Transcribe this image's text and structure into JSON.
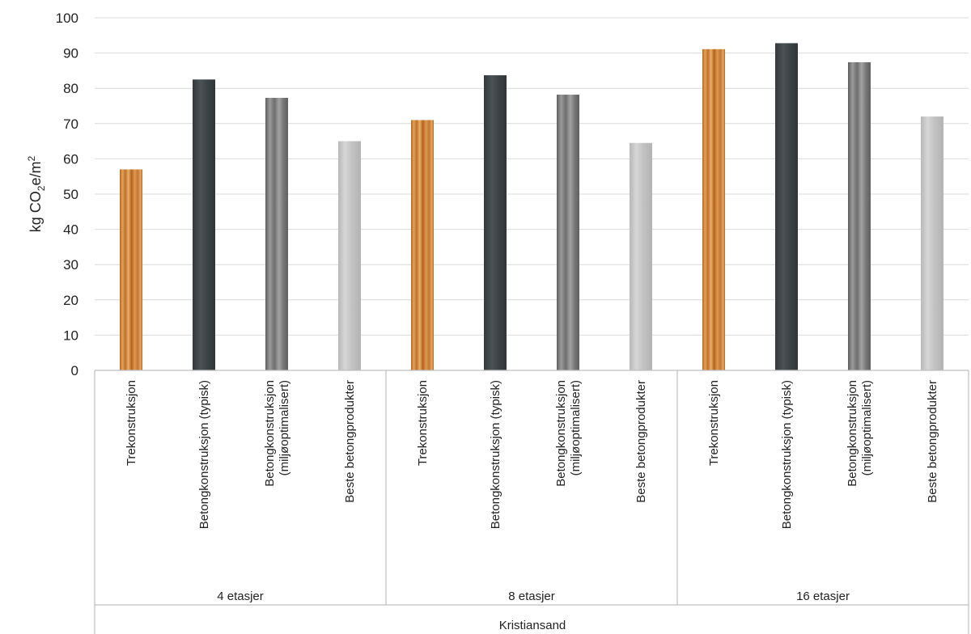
{
  "chart_data": {
    "type": "bar",
    "ylabel_parts": [
      "kg CO",
      "2",
      "e/m",
      "2"
    ],
    "ylim": [
      0,
      100
    ],
    "yticks": [
      "0",
      "10",
      "20",
      "30",
      "40",
      "50",
      "60",
      "70",
      "80",
      "90",
      "100"
    ],
    "outer_group": "Kristiansand",
    "grid": true,
    "colors": {
      "Trekonstruksjon": "#c67a34",
      "Betongkonstruksjon (typisk)": "#3d4347",
      "Betongkonstruksjon (miljøoptimalisert)": "#7b7b7b",
      "Beste betongprodukter": "#c9c9c9"
    },
    "groups": [
      {
        "label": "4 etasjer",
        "bars": [
          {
            "category": [
              "Trekonstruksjon"
            ],
            "kind": "wood",
            "value": 57
          },
          {
            "category": [
              "Betongkonstruksjon (typisk)"
            ],
            "kind": "dark",
            "value": 82.5
          },
          {
            "category": [
              "Betongkonstruksjon",
              "(miljøoptimalisert)"
            ],
            "kind": "mid",
            "value": 77.3
          },
          {
            "category": [
              "Beste betongprodukter"
            ],
            "kind": "light",
            "value": 65
          }
        ]
      },
      {
        "label": "8 etasjer",
        "bars": [
          {
            "category": [
              "Trekonstruksjon"
            ],
            "kind": "wood",
            "value": 71
          },
          {
            "category": [
              "Betongkonstruksjon (typisk)"
            ],
            "kind": "dark",
            "value": 83.7
          },
          {
            "category": [
              "Betongkonstruksjon",
              "(miljøoptimalisert)"
            ],
            "kind": "mid",
            "value": 78.2
          },
          {
            "category": [
              "Beste betongprodukter"
            ],
            "kind": "light",
            "value": 64.5
          }
        ]
      },
      {
        "label": "16 etasjer",
        "bars": [
          {
            "category": [
              "Trekonstruksjon"
            ],
            "kind": "wood",
            "value": 91.1
          },
          {
            "category": [
              "Betongkonstruksjon (typisk)"
            ],
            "kind": "dark",
            "value": 92.8
          },
          {
            "category": [
              "Betongkonstruksjon",
              "(miljøoptimalisert)"
            ],
            "kind": "mid",
            "value": 87.4
          },
          {
            "category": [
              "Beste betongprodukter"
            ],
            "kind": "light",
            "value": 72
          }
        ]
      }
    ]
  }
}
